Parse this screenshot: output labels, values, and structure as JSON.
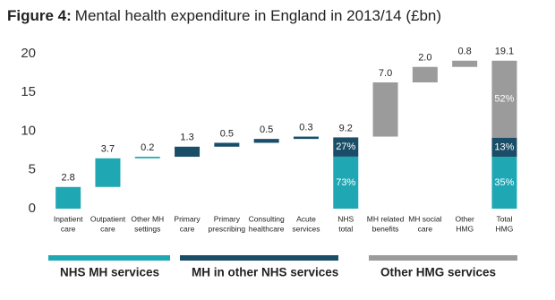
{
  "chart_data": {
    "type": "waterfall",
    "title_label": "Figure 4:",
    "title": "Mental health expenditure in England in 2013/14 (£bn)",
    "categories": [
      [
        "Inpatient",
        "care"
      ],
      [
        "Outpatient",
        "care"
      ],
      [
        "Other MH",
        "settings"
      ],
      [
        "Primary",
        "care"
      ],
      [
        "Primary",
        "prescribing"
      ],
      [
        "Consulting",
        "healthcare"
      ],
      [
        "Acute",
        "services"
      ],
      [
        "NHS",
        "total"
      ],
      [
        "MH related",
        "benefits"
      ],
      [
        "MH social",
        "care"
      ],
      [
        "Other",
        "HMG"
      ],
      [
        "Total",
        "HMG"
      ]
    ],
    "series": [
      {
        "name": "NHS MH services",
        "color": "#1fa8b4",
        "values": [
          2.8,
          3.7,
          0.2,
          null,
          null,
          null,
          null,
          null,
          null,
          null,
          null,
          null
        ]
      },
      {
        "name": "MH in other NHS services",
        "color": "#1a4e68",
        "values": [
          null,
          null,
          null,
          1.3,
          0.5,
          0.5,
          0.3,
          null,
          null,
          null,
          null,
          null
        ]
      },
      {
        "name": "Other HMG services",
        "color": "#9b9b9b",
        "values": [
          null,
          null,
          null,
          null,
          null,
          null,
          null,
          null,
          7.0,
          2.0,
          0.8,
          null
        ],
        "value_labels": [
          null,
          null,
          null,
          null,
          null,
          null,
          null,
          null,
          "7.0",
          "2.0",
          "0.8",
          null
        ]
      }
    ],
    "total_values": [
      null,
      null,
      null,
      null,
      null,
      null,
      null,
      9.2,
      null,
      null,
      null,
      19.1
    ],
    "share_values": [
      null,
      null,
      null,
      null,
      null,
      null,
      null,
      [
        73,
        27
      ],
      null,
      null,
      null,
      [
        35,
        13,
        52
      ]
    ],
    "share_value_labels": [
      null,
      null,
      null,
      null,
      null,
      null,
      null,
      [
        "73%",
        "27%"
      ],
      null,
      null,
      null,
      [
        "35%",
        "13%",
        "52%"
      ]
    ],
    "ylim": [
      0,
      20
    ],
    "yticks": [
      0,
      5,
      10,
      15,
      20
    ],
    "grid": false
  }
}
